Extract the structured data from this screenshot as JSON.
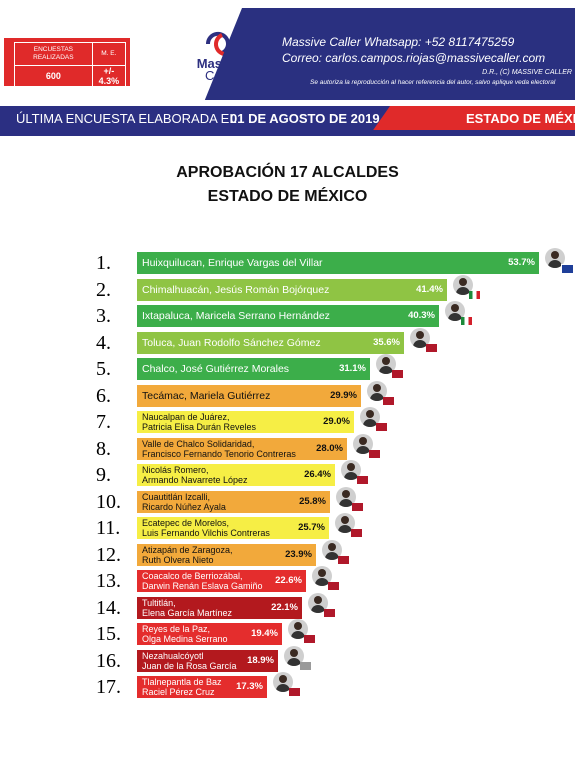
{
  "header": {
    "stats": {
      "sample_label": "ENCUESTAS REALIZADAS",
      "error_label": "M. E.",
      "sample_value": "600",
      "error_value": "+/- 4.3%"
    },
    "logo": {
      "line1": "Massive",
      "line2": "Caller"
    },
    "contact": {
      "whatsapp": "Massive Caller Whatsapp: +52 8117475259",
      "email": "Correo: carlos.campos.riojas@massivecaller.com",
      "rights": "D.R., (C) MASSIVE CALLER",
      "notice": "Se autoriza la reproducción al hacer referencia del autor, salvo aplique veda electoral"
    }
  },
  "strip": {
    "prefix": "ÚLTIMA ENCUESTA ELABORADA EL",
    "date": "01 DE AGOSTO DE 2019",
    "state": "ESTADO DE MÉXICO"
  },
  "colors": {
    "dark_green": "#3cae4a",
    "light_green": "#8fc444",
    "orange": "#f2a93b",
    "yellow": "#f6ee45",
    "red": "#e42d2d",
    "dark_red": "#b3191e",
    "header_blue": "#2b2f82",
    "header_red": "#e02a2a"
  },
  "chart_data": {
    "type": "bar",
    "orientation": "horizontal",
    "title": "APROBACIÓN 17 ALCALDES",
    "subtitle": "ESTADO DE MÉXICO",
    "unit": "%",
    "xlim": [
      0,
      55
    ],
    "grid": false,
    "legend": "none",
    "bars": [
      {
        "rank": "1.",
        "line1": "Huixquilucan, Enrique Vargas del Villar",
        "line2": "",
        "value": 53.7,
        "label": "53.7%",
        "color": "dark_green",
        "party": "PAN"
      },
      {
        "rank": "2.",
        "line1": "Chimalhuacán, Jesús Román Bojórquez",
        "line2": "",
        "value": 41.4,
        "label": "41.4%",
        "color": "light_green",
        "party": "PRI"
      },
      {
        "rank": "3.",
        "line1": "Ixtapaluca, Maricela Serrano Hernández",
        "line2": "",
        "value": 40.3,
        "label": "40.3%",
        "color": "dark_green",
        "party": "PRI"
      },
      {
        "rank": "4.",
        "line1": "Toluca, Juan Rodolfo Sánchez Gómez",
        "line2": "",
        "value": 35.6,
        "label": "35.6%",
        "color": "light_green",
        "party": "MORENA"
      },
      {
        "rank": "5.",
        "line1": "Chalco, José Gutiérrez Morales",
        "line2": "",
        "value": 31.1,
        "label": "31.1%",
        "color": "dark_green",
        "party": "MORENA"
      },
      {
        "rank": "6.",
        "line1": "Tecámac, Mariela Gutiérrez",
        "line2": "",
        "value": 29.9,
        "label": "29.9%",
        "color": "orange",
        "party": "MORENA"
      },
      {
        "rank": "7.",
        "line1": "Naucalpan de Juárez,",
        "line2": "Patricia Elisa Durán Reveles",
        "value": 29.0,
        "label": "29.0%",
        "color": "yellow",
        "party": "MORENA"
      },
      {
        "rank": "8.",
        "line1": "Valle de Chalco Solidaridad,",
        "line2": "Francisco Fernando Tenorio Contreras",
        "value": 28.0,
        "label": "28.0%",
        "color": "orange",
        "party": "MORENA"
      },
      {
        "rank": "9.",
        "line1": "Nicolás Romero,",
        "line2": "Armando Navarrete López",
        "value": 26.4,
        "label": "26.4%",
        "color": "yellow",
        "party": "MORENA"
      },
      {
        "rank": "10.",
        "line1": "Cuautitlán Izcalli,",
        "line2": "Ricardo Núñez Ayala",
        "value": 25.8,
        "label": "25.8%",
        "color": "orange",
        "party": "MORENA"
      },
      {
        "rank": "11.",
        "line1": "Ecatepec de Morelos,",
        "line2": "Luis Fernando Vilchis Contreras",
        "value": 25.7,
        "label": "25.7%",
        "color": "yellow",
        "party": "MORENA"
      },
      {
        "rank": "12.",
        "line1": "Atizapán de Zaragoza,",
        "line2": "Ruth Olvera Nieto",
        "value": 23.9,
        "label": "23.9%",
        "color": "orange",
        "party": "MORENA"
      },
      {
        "rank": "13.",
        "line1": "Coacalco de Berriozábal,",
        "line2": "Darwin Renán Eslava Gamiño",
        "value": 22.6,
        "label": "22.6%",
        "color": "red",
        "party": "MORENA"
      },
      {
        "rank": "14.",
        "line1": "Tultitlán,",
        "line2": "Elena García Martínez",
        "value": 22.1,
        "label": "22.1%",
        "color": "dark_red",
        "party": "MORENA"
      },
      {
        "rank": "15.",
        "line1": "Reyes de la Paz,",
        "line2": "Olga Medina Serrano",
        "value": 19.4,
        "label": "19.4%",
        "color": "red",
        "party": "MORENA"
      },
      {
        "rank": "16.",
        "line1": "Nezahualcóyotl",
        "line2": "Juan de la Rosa García",
        "value": 18.9,
        "label": "18.9%",
        "color": "dark_red",
        "party": "IND"
      },
      {
        "rank": "17.",
        "line1": "Tlalnepantla de Baz",
        "line2": "Raciel Pérez Cruz",
        "value": 17.3,
        "label": "17.3%",
        "color": "red",
        "party": "MORENA"
      }
    ]
  }
}
